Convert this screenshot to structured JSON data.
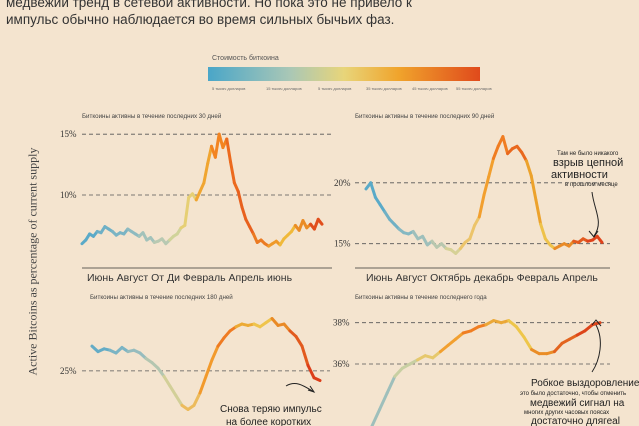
{
  "intro": {
    "line1": "медвежий тренд в сетевой активности. Но пока это не привело к",
    "line2": "импульс обычно наблюдается во время сильных бычьих фаз."
  },
  "legend": {
    "title": "Стоимость биткоина",
    "ticks": [
      "5 тысяч долларов",
      "15 тысяч долларов",
      "5 тысяч долларов",
      "35 тысяч долларов",
      "45 тысяч долларов",
      "55 тысяч долларов"
    ],
    "colors": [
      "#4aa6c8",
      "#a9c7b6",
      "#e8d57a",
      "#f0a42c",
      "#e04a1c"
    ]
  },
  "ylabel": "Active Bitcoins as percentage of current supply",
  "chart_data": [
    {
      "type": "line",
      "title": "Биткоины активны в течение последних 30 дней",
      "ylim": [
        4,
        16
      ],
      "yticks": [
        {
          "value": 15,
          "label": "15%"
        },
        {
          "value": 10,
          "label": "10%"
        }
      ],
      "xlabels": "Июнь Август От Ди Февраль Апрель июнь",
      "y": [
        6.0,
        6.3,
        6.8,
        6.6,
        7.0,
        6.9,
        7.4,
        7.2,
        7.0,
        6.7,
        6.9,
        6.8,
        7.2,
        7.0,
        6.8,
        6.6,
        6.9,
        6.3,
        6.5,
        6.1,
        6.2,
        6.4,
        6.0,
        6.3,
        6.6,
        6.8,
        7.3,
        7.5,
        9.8,
        10.1,
        9.6,
        10.3,
        11.0,
        12.6,
        14.0,
        13.1,
        15.0,
        13.9,
        14.6,
        12.7,
        11.0,
        10.3,
        9.0,
        8.0,
        7.4,
        6.8,
        6.1,
        6.3,
        6.0,
        5.8,
        6.0,
        6.2,
        5.9,
        6.4,
        6.7,
        7.0,
        7.5,
        7.1,
        7.9,
        7.3,
        7.6,
        7.2,
        8.0,
        7.6
      ],
      "colors": [
        "#5aaac8",
        "#6eb0c6",
        "#7ab4c4",
        "#8dbac0",
        "#a2c2ba",
        "#b8c9b2",
        "#d0d39a",
        "#e6cf74",
        "#f0a530",
        "#f38420",
        "#ec6a1e",
        "#e8611e",
        "#eb7a22",
        "#ef9a2a",
        "#f0b93a",
        "#ea8c26",
        "#e14e1c"
      ]
    },
    {
      "type": "line",
      "title": "Биткоины активны в течение последних 90 дней",
      "ylim": [
        13,
        25
      ],
      "yticks": [
        {
          "value": 20,
          "label": "20%"
        },
        {
          "value": 15,
          "label": "15%"
        }
      ],
      "xlabels": "Июнь Август Октябрь декабрь Февраль Апрель",
      "y": [
        19.5,
        20.0,
        18.8,
        18.2,
        17.6,
        17.0,
        16.6,
        16.2,
        15.9,
        15.8,
        16.0,
        15.4,
        15.6,
        14.9,
        15.2,
        14.7,
        15.0,
        14.6,
        14.5,
        14.2,
        14.6,
        15.1,
        15.4,
        16.5,
        17.2,
        19.0,
        20.5,
        22.0,
        23.0,
        23.8,
        22.4,
        22.8,
        23.0,
        22.5,
        21.8,
        20.6,
        18.6,
        16.6,
        15.4,
        14.9,
        14.6,
        14.8,
        15.0,
        14.8,
        15.2,
        15.1,
        15.4,
        15.2,
        15.3,
        15.6,
        15.1
      ],
      "colors": [
        "#5aaac8",
        "#70b0c4",
        "#85b8c2",
        "#9ebfbb",
        "#b8c7ae",
        "#d6d196",
        "#ecc46a",
        "#f29f2e",
        "#f07d22",
        "#e9681e",
        "#eca22c",
        "#eec24a",
        "#e98a26",
        "#e35a1e",
        "#df421a"
      ]
    },
    {
      "type": "line",
      "title": "Биткоины активны в течение последних 180 дней",
      "ylim": [
        21,
        30
      ],
      "yticks": [
        {
          "value": 25,
          "label": "25%"
        }
      ],
      "y": [
        26.8,
        26.4,
        26.6,
        26.5,
        26.3,
        26.7,
        26.4,
        26.5,
        26.3,
        25.9,
        25.6,
        25.2,
        24.6,
        23.9,
        23.2,
        22.5,
        22.2,
        22.5,
        23.4,
        24.6,
        25.8,
        26.8,
        27.4,
        27.9,
        28.2,
        28.4,
        28.3,
        28.4,
        28.2,
        28.5,
        28.8,
        28.3,
        28.4,
        27.9,
        27.5,
        26.8,
        25.4,
        24.5,
        24.3
      ],
      "colors": [
        "#64acc6",
        "#7bb4c4",
        "#96bcbe",
        "#b4c6b0",
        "#d2cf98",
        "#ecbb5c",
        "#f29a2c",
        "#ef7b22",
        "#ecaa34",
        "#efc44c",
        "#e98a26",
        "#e25a1e",
        "#dc3e1a"
      ]
    },
    {
      "type": "line",
      "title": "Биткоины активны в течение последнего года",
      "ylim": [
        33,
        39
      ],
      "yticks": [
        {
          "value": 38,
          "label": "38%"
        },
        {
          "value": 36,
          "label": "36%"
        }
      ],
      "y": [
        33.0,
        33.8,
        34.6,
        35.4,
        35.8,
        36.0,
        36.2,
        36.4,
        36.3,
        36.6,
        36.9,
        37.2,
        37.5,
        37.6,
        37.8,
        37.9,
        38.1,
        38.0,
        38.1,
        37.8,
        37.3,
        36.7,
        36.5,
        36.5,
        36.6,
        37.0,
        37.2,
        37.4,
        37.6,
        37.9,
        38.0
      ],
      "colors": [
        "#9ebfbb",
        "#c8cfa2",
        "#e6c86c",
        "#f2a030",
        "#f07e22",
        "#eba838",
        "#eec64a",
        "#ea8d26",
        "#e3641e",
        "#dd451a"
      ]
    }
  ],
  "annotations": {
    "a1_small": "Там не было никакого",
    "a1_big1": "взрыв цепной",
    "a1_big2": "активности",
    "a1_small2": "в прошлом месяце",
    "a2_big1": "Снова теряю импульс",
    "a2_big2": "на более коротких",
    "a3_big1": "Робкое выздоровление",
    "a3_small1": "это было достаточно, чтобы отменить",
    "a3_big2": "медвежий сигнал на",
    "a3_small2": "многих других часовых поясах",
    "a3_big3": "достаточно длягеаl"
  }
}
